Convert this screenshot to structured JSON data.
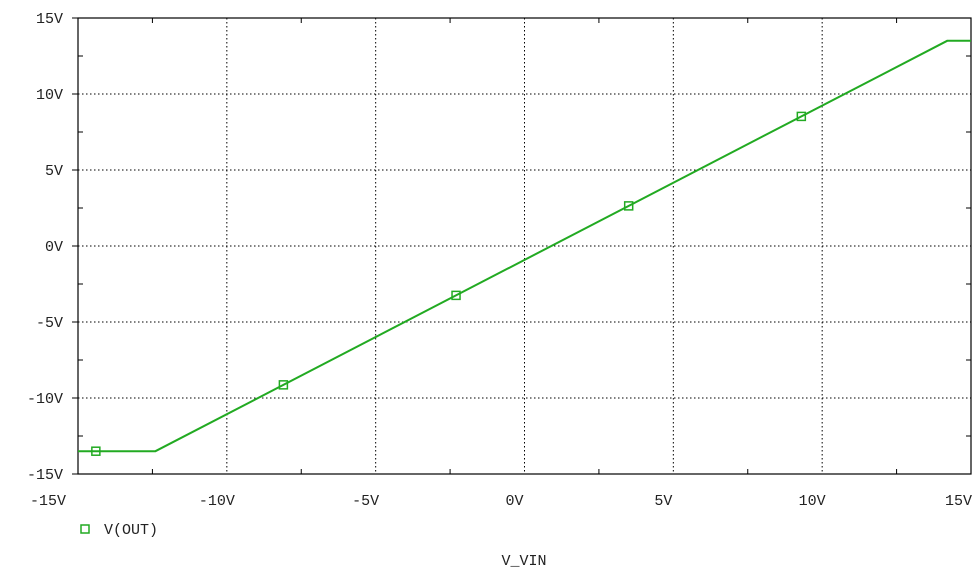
{
  "chart_data": {
    "type": "line",
    "xlabel": "V_VIN",
    "x_range": [
      -15,
      15
    ],
    "ylim": [
      -15,
      15
    ],
    "x_ticks": [
      -15,
      -10,
      -5,
      0,
      5,
      10,
      15
    ],
    "x_tick_labels": [
      "-15V",
      "-10V",
      "-5V",
      "0V",
      "5V",
      "10V",
      "15V"
    ],
    "y_ticks": [
      15,
      10,
      5,
      0,
      -5,
      -10,
      -15
    ],
    "y_tick_labels": [
      "15V",
      "10V",
      "5V",
      "0V",
      "-5V",
      "-10V",
      "-15V"
    ],
    "grid": true,
    "legend_position": "bottom-left",
    "series": [
      {
        "name": "V(OUT)",
        "color": "#22aa22",
        "x": [
          -15,
          -12.4,
          14.2,
          15
        ],
        "y": [
          -13.5,
          -13.5,
          13.5,
          13.5
        ],
        "markers_x": [
          -14.4,
          -8.1,
          -2.3,
          3.5,
          9.3
        ]
      }
    ]
  }
}
